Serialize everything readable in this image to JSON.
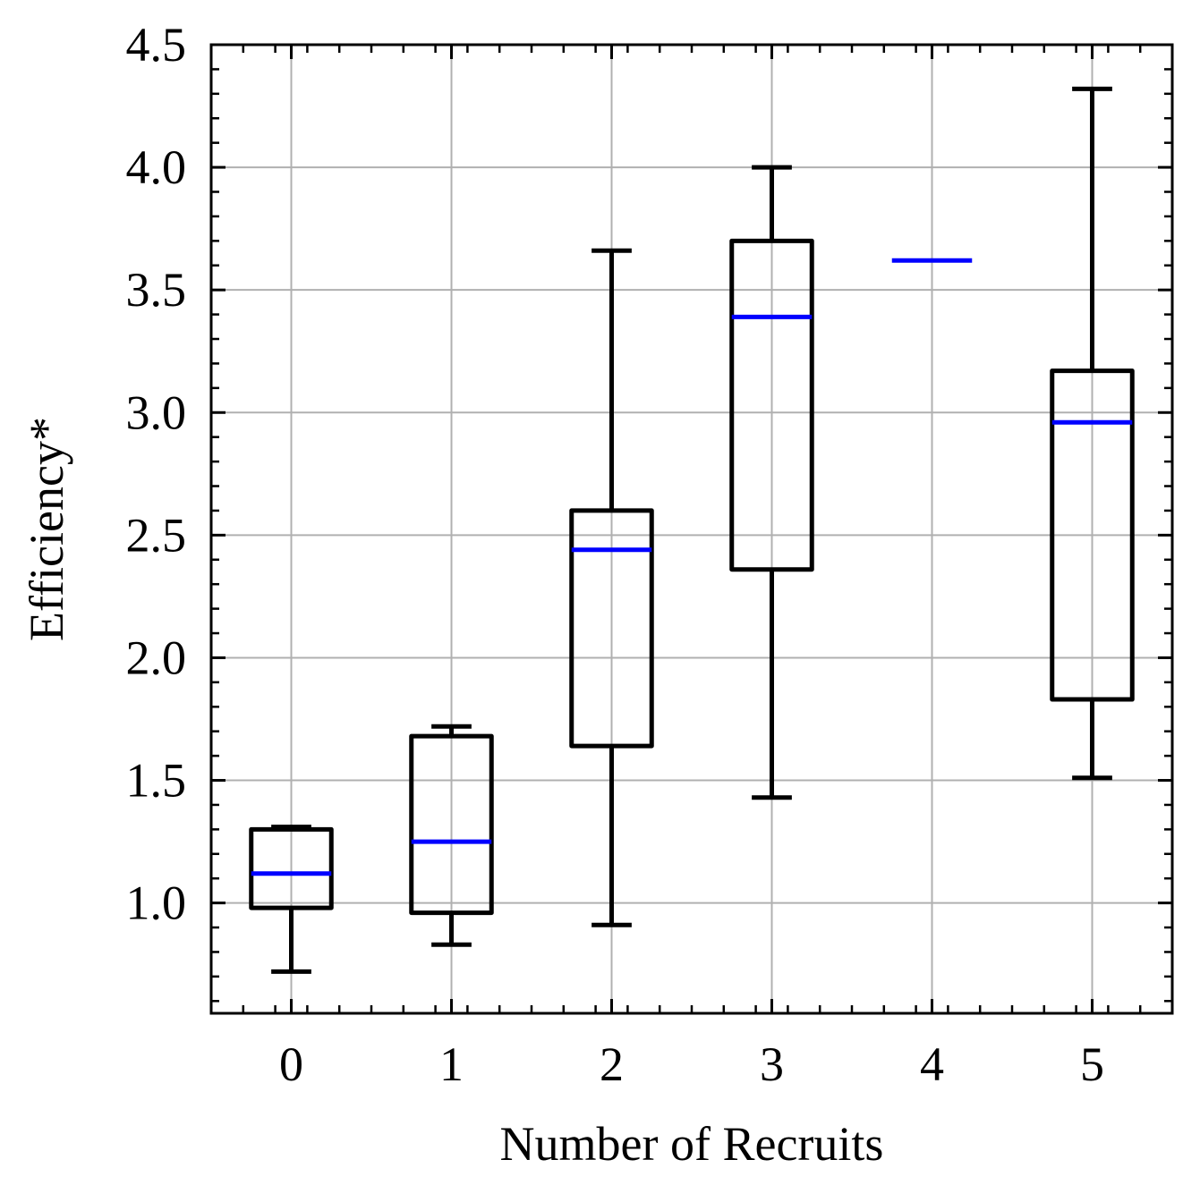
{
  "chart_data": {
    "type": "boxplot",
    "xlabel": "Number of Recruits",
    "ylabel": "Efficiency*",
    "categories": [
      "0",
      "1",
      "2",
      "3",
      "4",
      "5"
    ],
    "ylim": [
      0.55,
      4.5
    ],
    "yticks": [
      {
        "value": 1.0,
        "label": "1.0"
      },
      {
        "value": 1.5,
        "label": "1.5"
      },
      {
        "value": 2.0,
        "label": "2.0"
      },
      {
        "value": 2.5,
        "label": "2.5"
      },
      {
        "value": 3.0,
        "label": "3.0"
      },
      {
        "value": 3.5,
        "label": "3.5"
      },
      {
        "value": 4.0,
        "label": "4.0"
      },
      {
        "value": 4.5,
        "label": "4.5"
      }
    ],
    "y_minor_step": 0.1,
    "grid": true,
    "colors": {
      "box": "#000000",
      "median": "#0000ff",
      "grid": "#b0b0b0"
    },
    "boxes": [
      {
        "category": "0",
        "whisker_low": 0.72,
        "q1": 0.98,
        "median": 1.12,
        "q3": 1.3,
        "whisker_high": 1.31
      },
      {
        "category": "1",
        "whisker_low": 0.83,
        "q1": 0.96,
        "median": 1.25,
        "q3": 1.68,
        "whisker_high": 1.72
      },
      {
        "category": "2",
        "whisker_low": 0.91,
        "q1": 1.64,
        "median": 2.44,
        "q3": 2.6,
        "whisker_high": 3.66
      },
      {
        "category": "3",
        "whisker_low": 1.43,
        "q1": 2.36,
        "median": 3.39,
        "q3": 3.7,
        "whisker_high": 4.0
      },
      {
        "category": "4",
        "whisker_low": 3.62,
        "q1": 3.62,
        "median": 3.62,
        "q3": 3.62,
        "whisker_high": 3.62
      },
      {
        "category": "5",
        "whisker_low": 1.51,
        "q1": 1.83,
        "median": 2.96,
        "q3": 3.17,
        "whisker_high": 4.32
      }
    ]
  }
}
